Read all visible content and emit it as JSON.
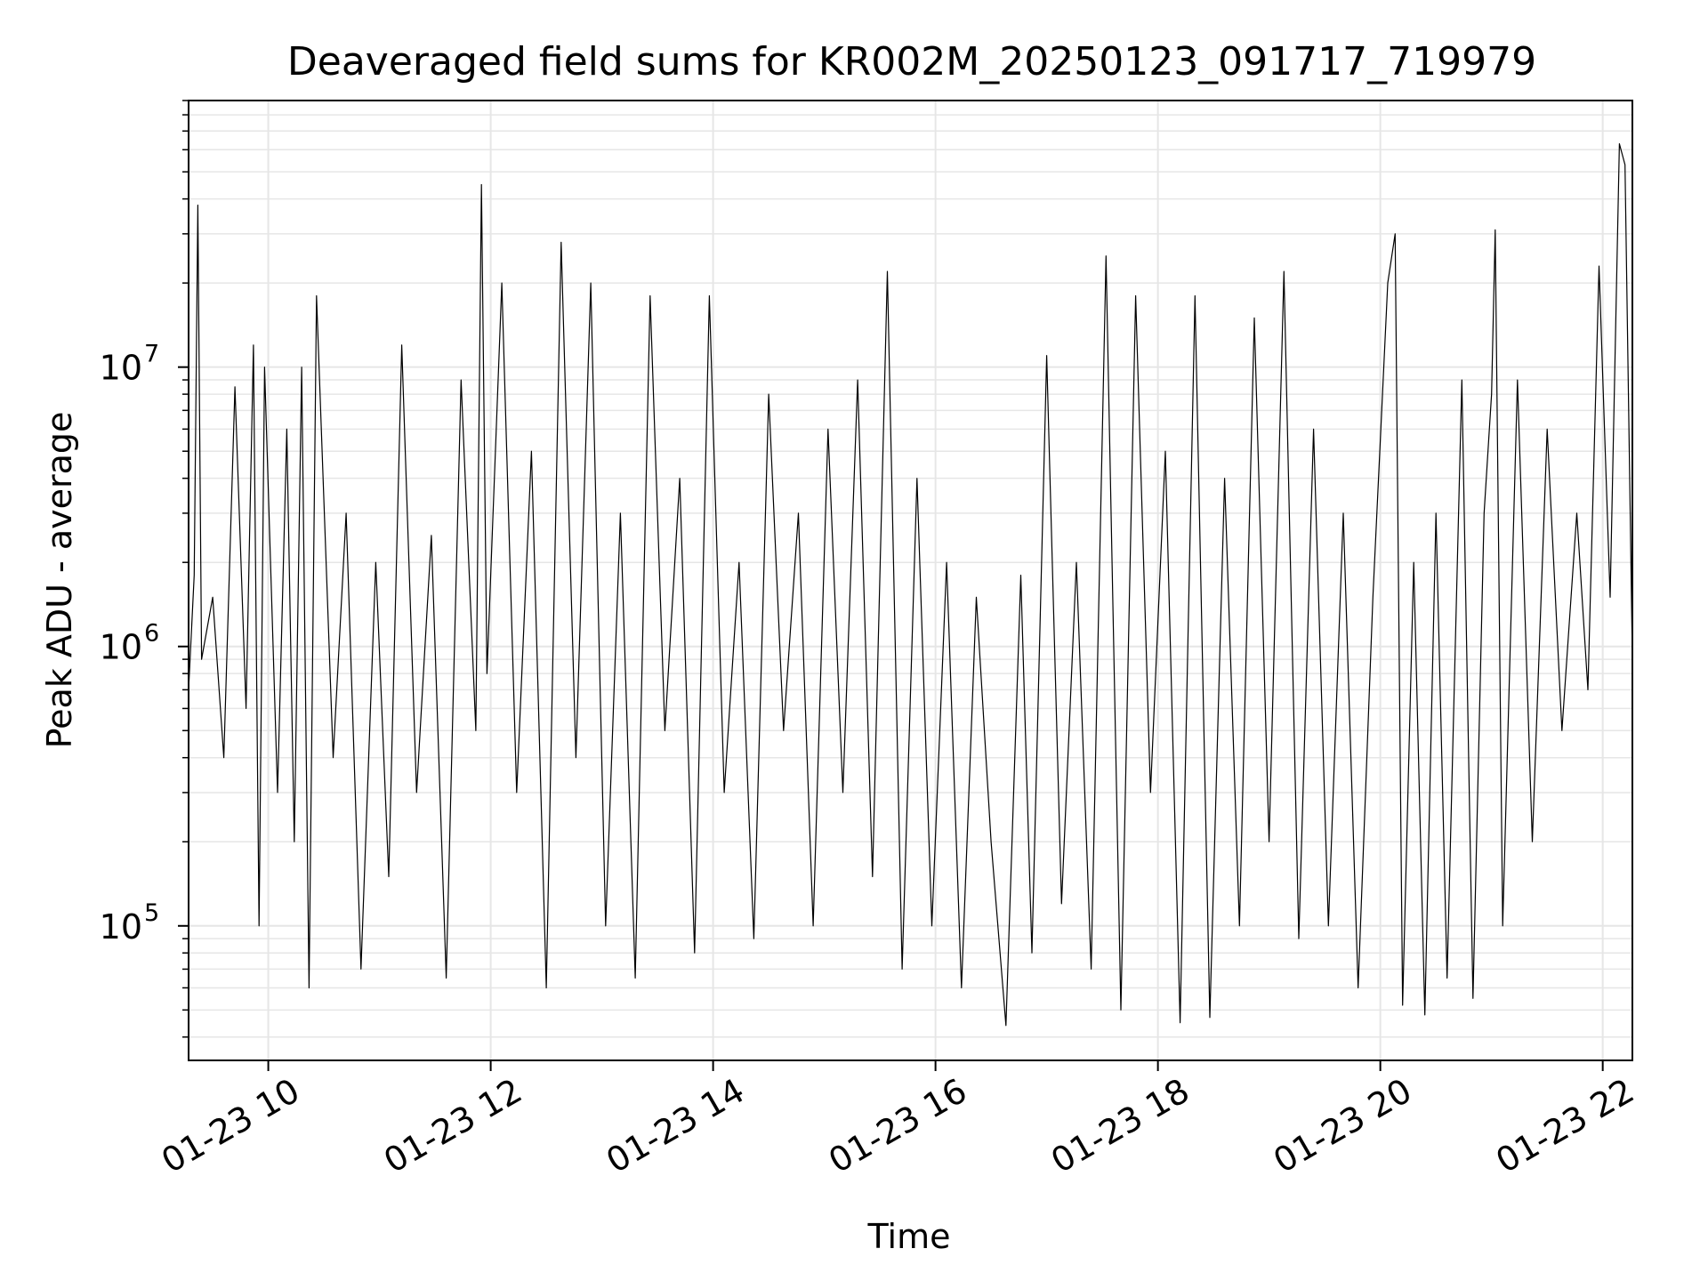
{
  "chart_data": {
    "type": "line",
    "title": "Deaveraged field sums for KR002M_20250123_091717_719979",
    "xlabel": "Time",
    "ylabel": "Peak ADU - average",
    "x_range": [
      "2025-01-23T09:17:00",
      "2025-01-23T22:16:00"
    ],
    "y_range": [
      33000,
      90000000
    ],
    "y_scale": "log",
    "grid": true,
    "line_color": "#000000",
    "x_ticks": [
      {
        "t": "2025-01-23T10:00:00",
        "label": "01-23 10"
      },
      {
        "t": "2025-01-23T12:00:00",
        "label": "01-23 12"
      },
      {
        "t": "2025-01-23T14:00:00",
        "label": "01-23 14"
      },
      {
        "t": "2025-01-23T16:00:00",
        "label": "01-23 16"
      },
      {
        "t": "2025-01-23T18:00:00",
        "label": "01-23 18"
      },
      {
        "t": "2025-01-23T20:00:00",
        "label": "01-23 20"
      },
      {
        "t": "2025-01-23T22:00:00",
        "label": "01-23 22"
      }
    ],
    "y_ticks": [
      {
        "v": 100000,
        "base": "10",
        "exp": "5"
      },
      {
        "v": 1000000,
        "base": "10",
        "exp": "6"
      },
      {
        "v": 10000000,
        "base": "10",
        "exp": "7"
      }
    ],
    "series": [
      {
        "points": [
          [
            "2025-01-23T09:17:00",
            700000
          ],
          [
            "2025-01-23T09:20:00",
            1800000
          ],
          [
            "2025-01-23T09:22:00",
            38000000
          ],
          [
            "2025-01-23T09:24:00",
            900000
          ],
          [
            "2025-01-23T09:30:00",
            1500000
          ],
          [
            "2025-01-23T09:36:00",
            400000
          ],
          [
            "2025-01-23T09:42:00",
            8500000
          ],
          [
            "2025-01-23T09:48:00",
            600000
          ],
          [
            "2025-01-23T09:52:00",
            12000000
          ],
          [
            "2025-01-23T09:55:00",
            100000
          ],
          [
            "2025-01-23T09:58:00",
            10000000
          ],
          [
            "2025-01-23T10:05:00",
            300000
          ],
          [
            "2025-01-23T10:10:00",
            6000000
          ],
          [
            "2025-01-23T10:14:00",
            200000
          ],
          [
            "2025-01-23T10:18:00",
            10000000
          ],
          [
            "2025-01-23T10:22:00",
            60000
          ],
          [
            "2025-01-23T10:26:00",
            18000000
          ],
          [
            "2025-01-23T10:35:00",
            400000
          ],
          [
            "2025-01-23T10:42:00",
            3000000
          ],
          [
            "2025-01-23T10:50:00",
            70000
          ],
          [
            "2025-01-23T10:58:00",
            2000000
          ],
          [
            "2025-01-23T11:05:00",
            150000
          ],
          [
            "2025-01-23T11:12:00",
            12000000
          ],
          [
            "2025-01-23T11:20:00",
            300000
          ],
          [
            "2025-01-23T11:28:00",
            2500000
          ],
          [
            "2025-01-23T11:36:00",
            65000
          ],
          [
            "2025-01-23T11:44:00",
            9000000
          ],
          [
            "2025-01-23T11:52:00",
            500000
          ],
          [
            "2025-01-23T11:55:00",
            45000000
          ],
          [
            "2025-01-23T11:58:00",
            800000
          ],
          [
            "2025-01-23T12:06:00",
            20000000
          ],
          [
            "2025-01-23T12:14:00",
            300000
          ],
          [
            "2025-01-23T12:22:00",
            5000000
          ],
          [
            "2025-01-23T12:30:00",
            60000
          ],
          [
            "2025-01-23T12:38:00",
            28000000
          ],
          [
            "2025-01-23T12:46:00",
            400000
          ],
          [
            "2025-01-23T12:54:00",
            20000000
          ],
          [
            "2025-01-23T13:02:00",
            100000
          ],
          [
            "2025-01-23T13:10:00",
            3000000
          ],
          [
            "2025-01-23T13:18:00",
            65000
          ],
          [
            "2025-01-23T13:26:00",
            18000000
          ],
          [
            "2025-01-23T13:34:00",
            500000
          ],
          [
            "2025-01-23T13:42:00",
            4000000
          ],
          [
            "2025-01-23T13:50:00",
            80000
          ],
          [
            "2025-01-23T13:58:00",
            18000000
          ],
          [
            "2025-01-23T14:06:00",
            300000
          ],
          [
            "2025-01-23T14:14:00",
            2000000
          ],
          [
            "2025-01-23T14:22:00",
            90000
          ],
          [
            "2025-01-23T14:30:00",
            8000000
          ],
          [
            "2025-01-23T14:38:00",
            500000
          ],
          [
            "2025-01-23T14:46:00",
            3000000
          ],
          [
            "2025-01-23T14:54:00",
            100000
          ],
          [
            "2025-01-23T15:02:00",
            6000000
          ],
          [
            "2025-01-23T15:10:00",
            300000
          ],
          [
            "2025-01-23T15:18:00",
            9000000
          ],
          [
            "2025-01-23T15:26:00",
            150000
          ],
          [
            "2025-01-23T15:34:00",
            22000000
          ],
          [
            "2025-01-23T15:42:00",
            70000
          ],
          [
            "2025-01-23T15:50:00",
            4000000
          ],
          [
            "2025-01-23T15:58:00",
            100000
          ],
          [
            "2025-01-23T16:06:00",
            2000000
          ],
          [
            "2025-01-23T16:14:00",
            60000
          ],
          [
            "2025-01-23T16:22:00",
            1500000
          ],
          [
            "2025-01-23T16:30:00",
            200000
          ],
          [
            "2025-01-23T16:38:00",
            44000
          ],
          [
            "2025-01-23T16:46:00",
            1800000
          ],
          [
            "2025-01-23T16:52:00",
            80000
          ],
          [
            "2025-01-23T17:00:00",
            11000000
          ],
          [
            "2025-01-23T17:08:00",
            120000
          ],
          [
            "2025-01-23T17:16:00",
            2000000
          ],
          [
            "2025-01-23T17:24:00",
            70000
          ],
          [
            "2025-01-23T17:32:00",
            25000000
          ],
          [
            "2025-01-23T17:40:00",
            50000
          ],
          [
            "2025-01-23T17:48:00",
            18000000
          ],
          [
            "2025-01-23T17:56:00",
            300000
          ],
          [
            "2025-01-23T18:04:00",
            5000000
          ],
          [
            "2025-01-23T18:12:00",
            45000
          ],
          [
            "2025-01-23T18:20:00",
            18000000
          ],
          [
            "2025-01-23T18:28:00",
            47000
          ],
          [
            "2025-01-23T18:36:00",
            4000000
          ],
          [
            "2025-01-23T18:44:00",
            100000
          ],
          [
            "2025-01-23T18:52:00",
            15000000
          ],
          [
            "2025-01-23T19:00:00",
            200000
          ],
          [
            "2025-01-23T19:08:00",
            22000000
          ],
          [
            "2025-01-23T19:16:00",
            90000
          ],
          [
            "2025-01-23T19:24:00",
            6000000
          ],
          [
            "2025-01-23T19:32:00",
            100000
          ],
          [
            "2025-01-23T19:40:00",
            3000000
          ],
          [
            "2025-01-23T19:48:00",
            60000
          ],
          [
            "2025-01-23T19:56:00",
            1500000
          ],
          [
            "2025-01-23T20:04:00",
            20000000
          ],
          [
            "2025-01-23T20:08:00",
            30000000
          ],
          [
            "2025-01-23T20:12:00",
            52000
          ],
          [
            "2025-01-23T20:18:00",
            2000000
          ],
          [
            "2025-01-23T20:24:00",
            48000
          ],
          [
            "2025-01-23T20:30:00",
            3000000
          ],
          [
            "2025-01-23T20:36:00",
            65000
          ],
          [
            "2025-01-23T20:44:00",
            9000000
          ],
          [
            "2025-01-23T20:50:00",
            55000
          ],
          [
            "2025-01-23T20:56:00",
            3000000
          ],
          [
            "2025-01-23T21:00:00",
            8000000
          ],
          [
            "2025-01-23T21:02:00",
            31000000
          ],
          [
            "2025-01-23T21:06:00",
            100000
          ],
          [
            "2025-01-23T21:14:00",
            9000000
          ],
          [
            "2025-01-23T21:22:00",
            200000
          ],
          [
            "2025-01-23T21:30:00",
            6000000
          ],
          [
            "2025-01-23T21:38:00",
            500000
          ],
          [
            "2025-01-23T21:46:00",
            3000000
          ],
          [
            "2025-01-23T21:52:00",
            700000
          ],
          [
            "2025-01-23T21:58:00",
            23000000
          ],
          [
            "2025-01-23T22:04:00",
            1500000
          ],
          [
            "2025-01-23T22:09:00",
            63000000
          ],
          [
            "2025-01-23T22:12:00",
            53000000
          ],
          [
            "2025-01-23T22:16:00",
            900000
          ]
        ]
      }
    ]
  }
}
